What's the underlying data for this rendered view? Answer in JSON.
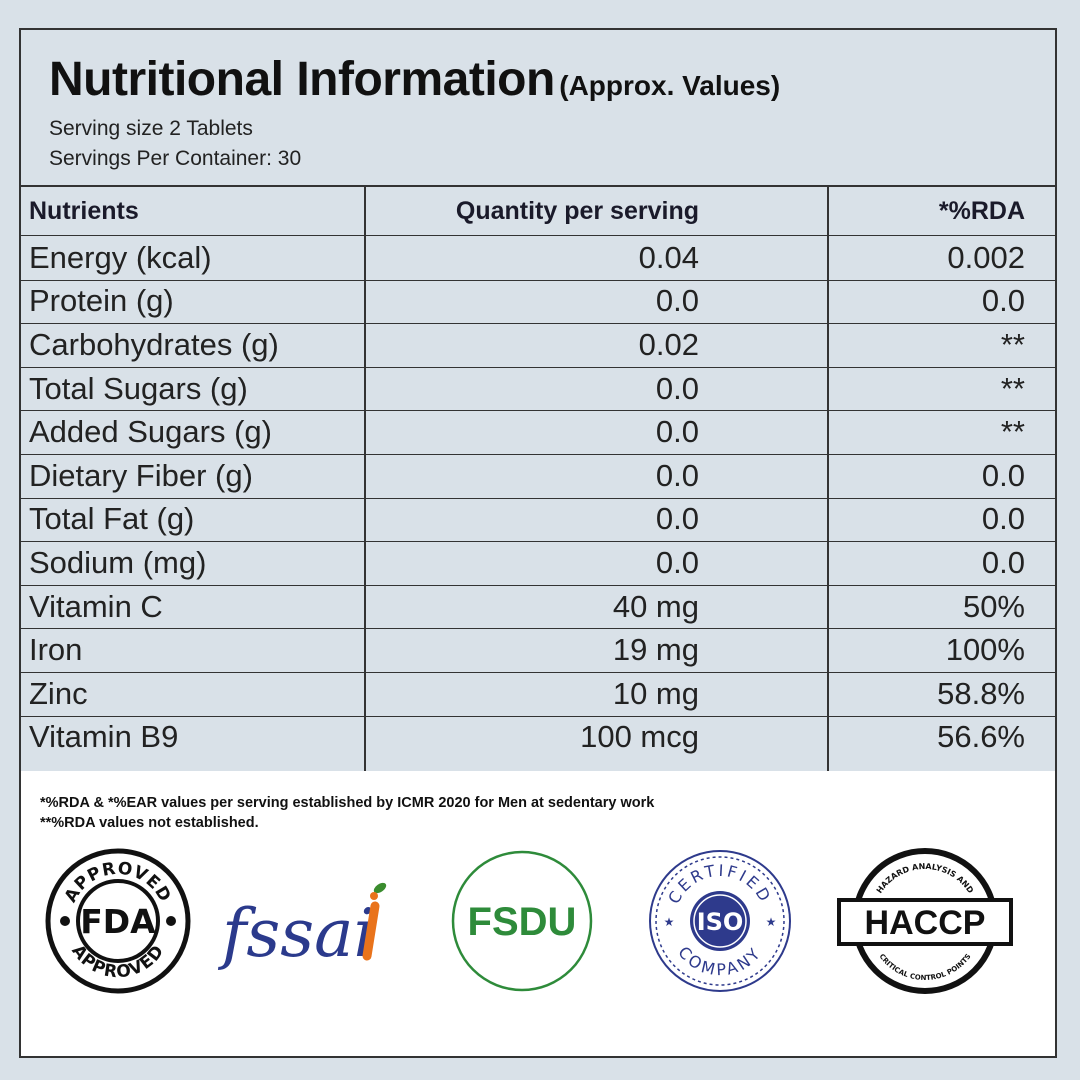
{
  "title": {
    "main": "Nutritional Information",
    "sub": "(Approx. Values)"
  },
  "serving": {
    "size": "Serving size 2  Tablets",
    "per_container": "Servings Per Container: 30"
  },
  "table": {
    "headers": [
      "Nutrients",
      "Quantity per serving",
      "*%RDA"
    ],
    "rows": [
      {
        "nutrient": "Energy (kcal)",
        "quantity": "0.04",
        "rda": "0.002"
      },
      {
        "nutrient": "Protein (g)",
        "quantity": "0.0",
        "rda": "0.0"
      },
      {
        "nutrient": "Carbohydrates (g)",
        "quantity": "0.02",
        "rda": "**"
      },
      {
        "nutrient": "Total Sugars (g)",
        "quantity": "0.0",
        "rda": "**"
      },
      {
        "nutrient": "Added Sugars (g)",
        "quantity": "0.0",
        "rda": "**"
      },
      {
        "nutrient": "Dietary Fiber (g)",
        "quantity": "0.0",
        "rda": "0.0"
      },
      {
        "nutrient": "Total Fat (g)",
        "quantity": "0.0",
        "rda": "0.0"
      },
      {
        "nutrient": "Sodium (mg)",
        "quantity": "0.0",
        "rda": "0.0"
      },
      {
        "nutrient": "Vitamin C",
        "quantity": "40 mg",
        "rda": "50%"
      },
      {
        "nutrient": "Iron",
        "quantity": "19 mg",
        "rda": "100%"
      },
      {
        "nutrient": "Zinc",
        "quantity": "10 mg",
        "rda": "58.8%"
      },
      {
        "nutrient": "Vitamin B9",
        "quantity": "100 mcg",
        "rda": "56.6%"
      }
    ]
  },
  "notes": [
    "*%RDA & *%EAR values per serving established by ICMR 2020 for Men at sedentary work",
    "**%RDA values not established."
  ],
  "logos": {
    "fda": {
      "center": "FDA",
      "top": "APPROVED",
      "bottom": "APPROVED"
    },
    "fssai": {
      "text": "fssai"
    },
    "fsdu": {
      "text": "FSDU",
      "color": "#2e8b3a"
    },
    "iso": {
      "center": "ISO",
      "top": "CERTIFIED",
      "bottom": "COMPANY",
      "color": "#2e3a8c"
    },
    "haccp": {
      "center": "HACCP",
      "top": "HAZARD ANALYSIS AND",
      "bottom": "CRITICAL CONTROL POINTS"
    }
  }
}
